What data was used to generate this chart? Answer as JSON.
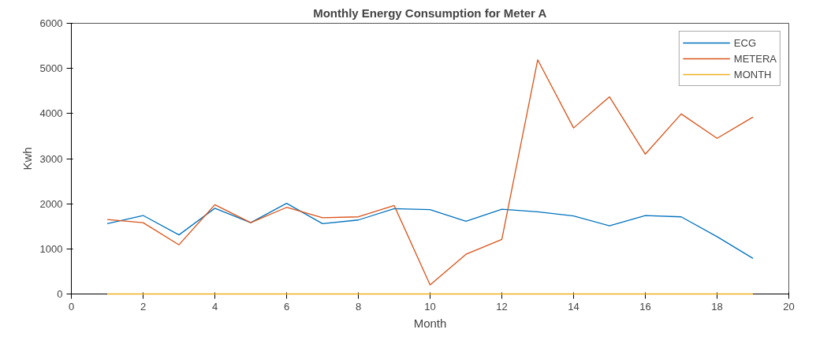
{
  "chart_data": {
    "type": "line",
    "title": "Monthly Energy Consumption for Meter A",
    "xlabel": "Month",
    "ylabel": "Kwh",
    "x": [
      1,
      2,
      3,
      4,
      5,
      6,
      7,
      8,
      9,
      10,
      11,
      12,
      13,
      14,
      15,
      16,
      17,
      18,
      19
    ],
    "series": [
      {
        "name": "ECG",
        "color": "#0072bd",
        "values": [
          1560,
          1740,
          1310,
          1900,
          1580,
          2010,
          1560,
          1640,
          1890,
          1870,
          1610,
          1880,
          1820,
          1730,
          1510,
          1740,
          1710,
          1270,
          790
        ]
      },
      {
        "name": "METERA",
        "color": "#d95319",
        "values": [
          1650,
          1580,
          1090,
          1980,
          1580,
          1920,
          1690,
          1710,
          1960,
          200,
          880,
          1210,
          5190,
          3680,
          4370,
          3100,
          3990,
          3450,
          3920
        ]
      },
      {
        "name": "MONTH",
        "color": "#edb120",
        "values": [
          0,
          0,
          0,
          0,
          0,
          0,
          0,
          0,
          0,
          0,
          0,
          0,
          0,
          0,
          0,
          0,
          0,
          0,
          0
        ]
      }
    ],
    "xlim": [
      0,
      20
    ],
    "ylim": [
      0,
      6000
    ],
    "xticks": [
      0,
      2,
      4,
      6,
      8,
      10,
      12,
      14,
      16,
      18,
      20
    ],
    "yticks": [
      0,
      1000,
      2000,
      3000,
      4000,
      5000,
      6000
    ],
    "grid": false,
    "legend": "top right",
    "marker": "none",
    "line_style": "solid"
  }
}
